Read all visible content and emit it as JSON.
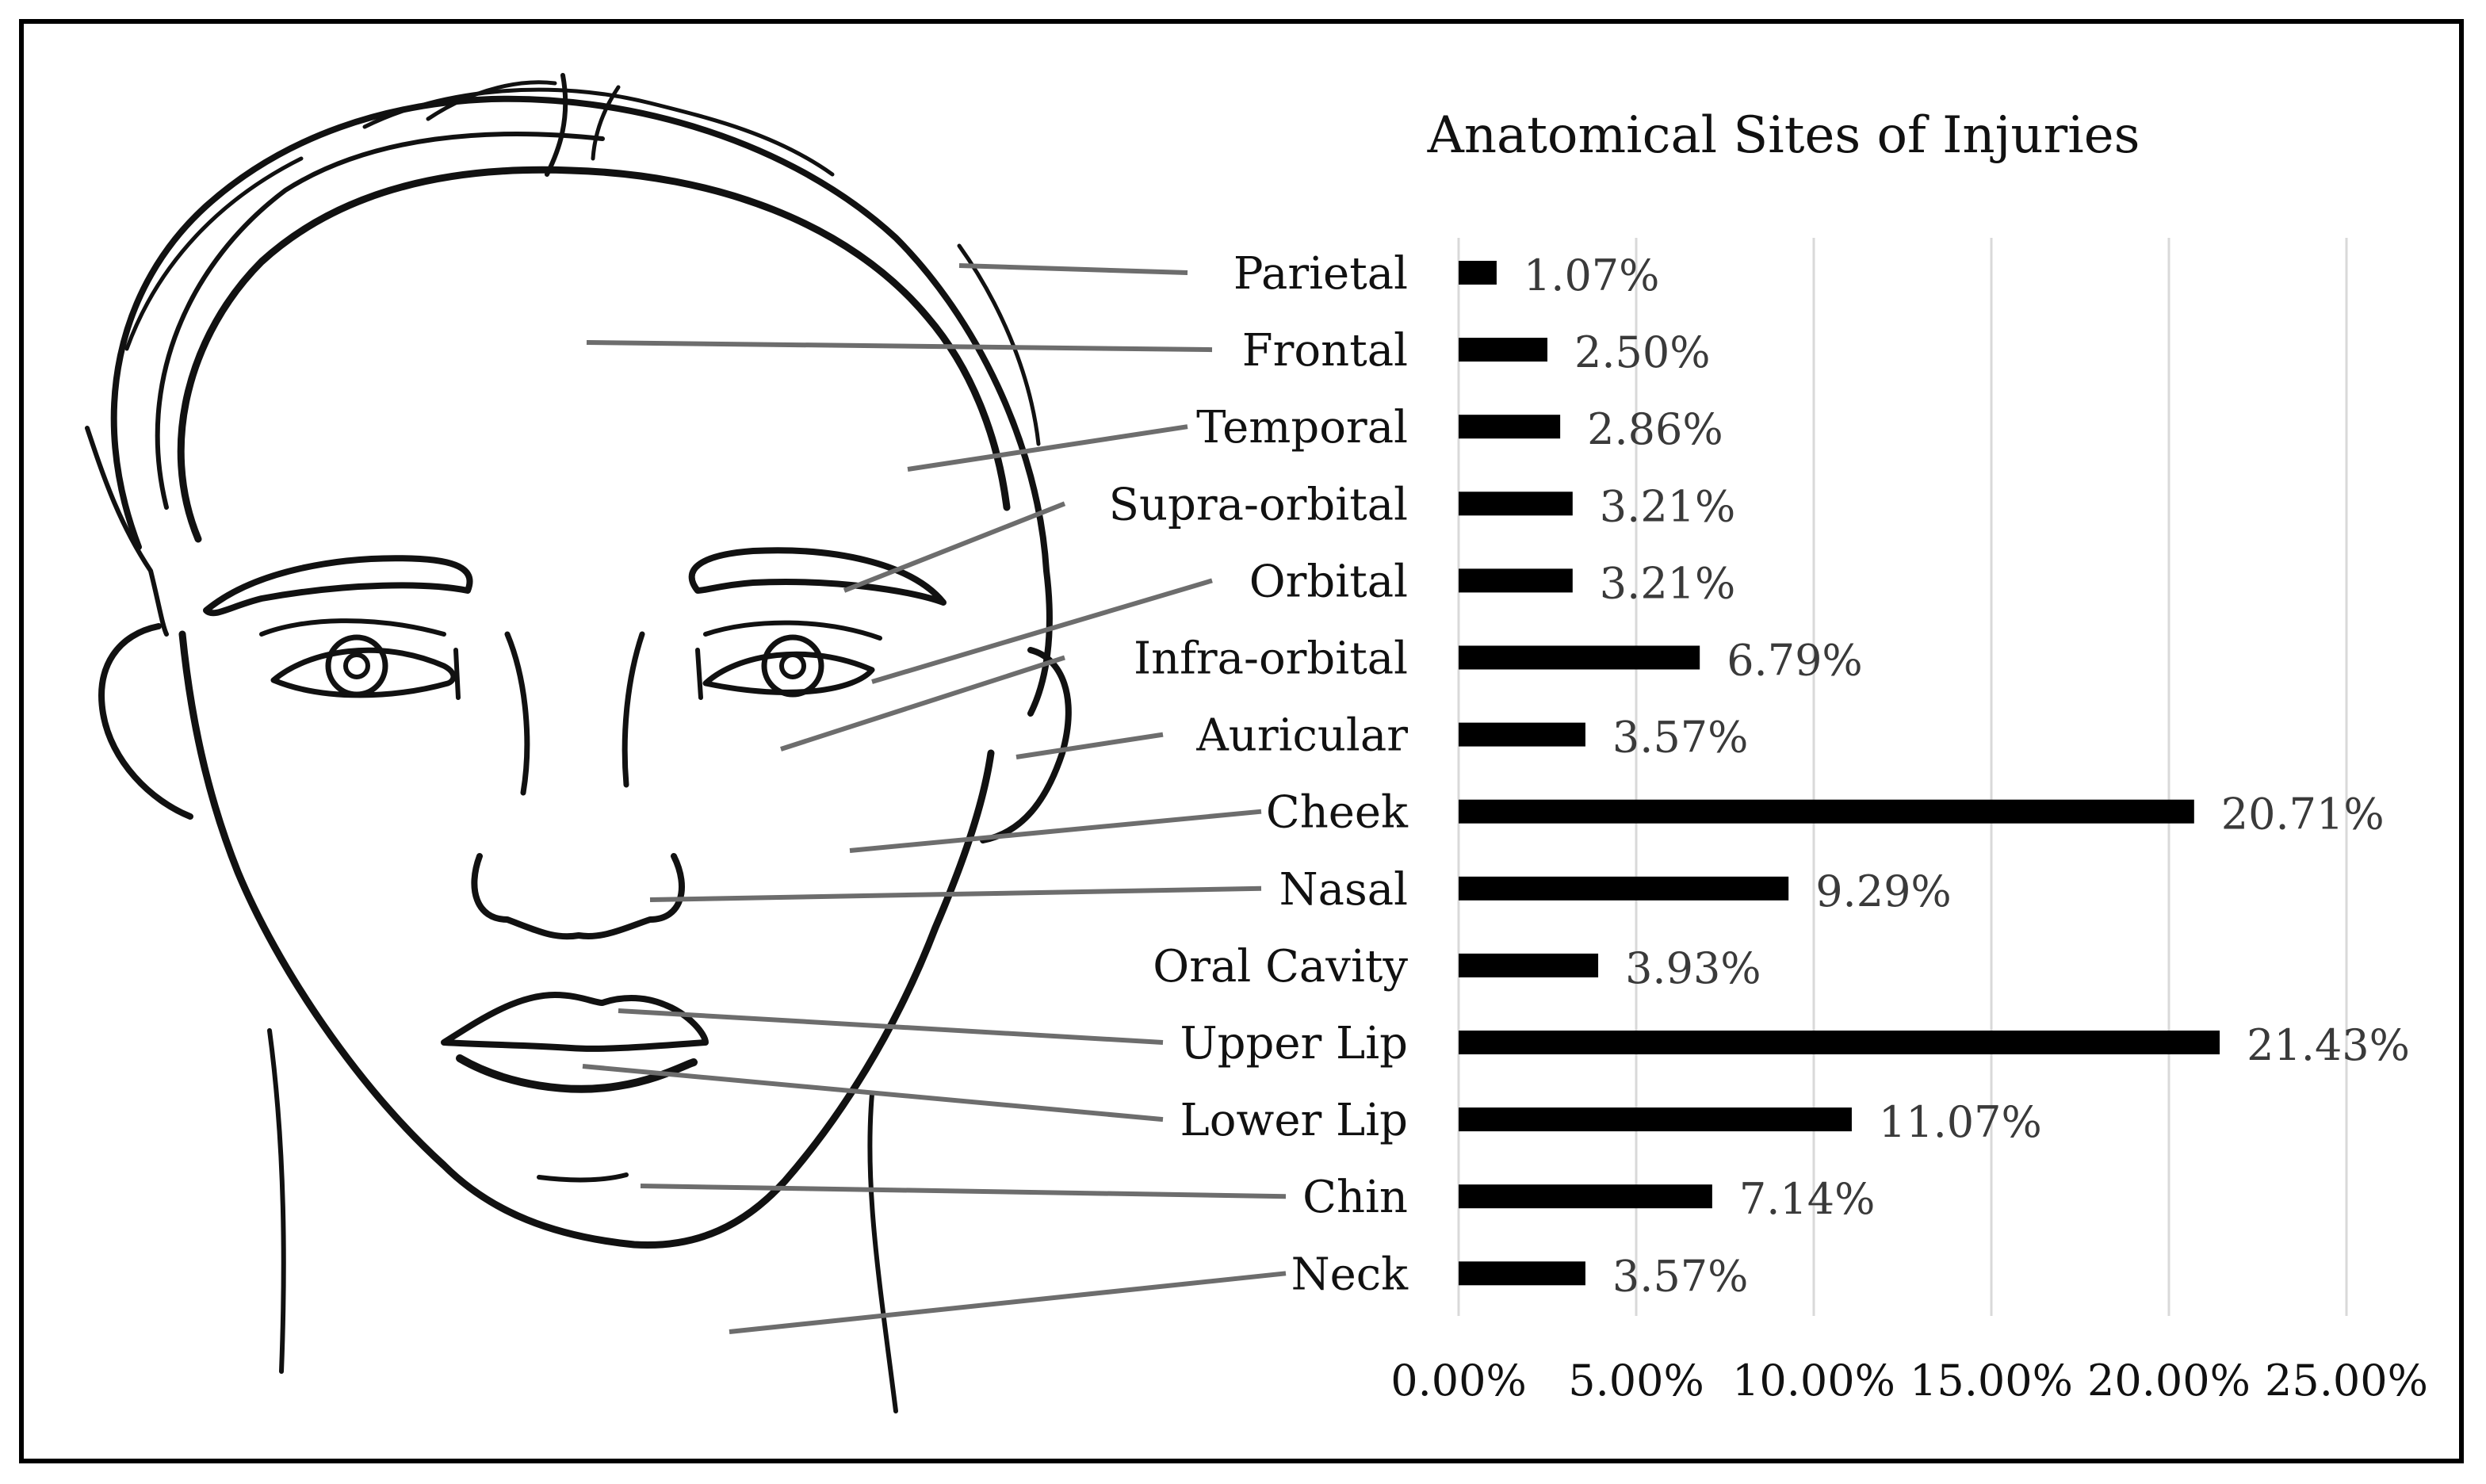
{
  "chart_data": {
    "type": "bar",
    "orientation": "horizontal",
    "title": "Anatomical Sites of Injuries",
    "categories": [
      "Parietal",
      "Frontal",
      "Temporal",
      "Supra-orbital",
      "Orbital",
      "Infra-orbital",
      "Auricular",
      "Cheek",
      "Nasal",
      "Oral Cavity",
      "Upper Lip",
      "Lower Lip",
      "Chin",
      "Neck"
    ],
    "values": [
      1.07,
      2.5,
      2.86,
      3.21,
      3.21,
      6.79,
      3.57,
      20.71,
      9.29,
      3.93,
      21.43,
      11.07,
      7.14,
      3.57
    ],
    "value_labels": [
      "1.07%",
      "2.50%",
      "2.86%",
      "3.21%",
      "3.21%",
      "6.79%",
      "3.57%",
      "20.71%",
      "9.29%",
      "3.93%",
      "21.43%",
      "11.07%",
      "7.14%",
      "3.57%"
    ],
    "xlim": [
      0,
      25
    ],
    "x_ticks": [
      0,
      5,
      10,
      15,
      20,
      25
    ],
    "x_tick_labels": [
      "0.00%",
      "5.00%",
      "10.00%",
      "15.00%",
      "20.00%",
      "25.00%"
    ],
    "grid": "vertical",
    "legend": "none",
    "bar_color": "#000000",
    "leader_color": "#6d6d6d"
  },
  "illustration": {
    "icon": "female-face-line-drawing-icon"
  }
}
